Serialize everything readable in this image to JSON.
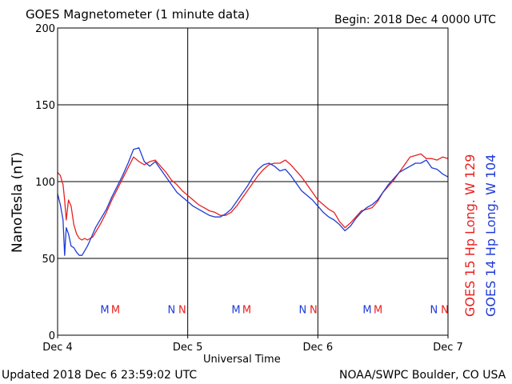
{
  "header": {
    "title": "GOES Magnetometer (1 minute data)",
    "begin": "Begin:  2018 Dec 4 0000 UTC"
  },
  "footer": {
    "updated": "Updated 2018 Dec  6 23:59:02 UTC",
    "credit": "NOAA/SWPC Boulder, CO USA"
  },
  "colors": {
    "goes15": "#e8201e",
    "goes14": "#1f3bd6",
    "grid": "#000000"
  },
  "chart_data": {
    "type": "line",
    "xlabel": "Universal Time",
    "ylabel": "NanoTesla (nT)",
    "ylim": [
      0,
      200
    ],
    "xlim": [
      0,
      72
    ],
    "yticks": [
      0,
      50,
      100,
      150,
      200
    ],
    "xticks": [
      {
        "x": 0,
        "label": "Dec 4"
      },
      {
        "x": 24,
        "label": "Dec 5"
      },
      {
        "x": 48,
        "label": "Dec 6"
      },
      {
        "x": 72,
        "label": "Dec 7"
      }
    ],
    "grid": true,
    "legend": "right-vertical",
    "series": [
      {
        "name": "GOES 15 Hp  Long. W 129",
        "color": "#e8201e",
        "x": [
          0,
          0.5,
          1,
          1.3,
          1.6,
          2,
          2.5,
          3,
          3.5,
          4,
          4.5,
          5,
          5.5,
          6,
          6.5,
          7,
          8,
          9,
          10,
          11,
          12,
          13,
          14,
          15,
          16,
          17,
          18,
          19,
          20,
          21,
          22,
          23,
          24,
          25,
          26,
          27,
          28,
          29,
          30,
          31,
          32,
          33,
          34,
          35,
          36,
          37,
          38,
          39,
          40,
          41,
          42,
          43,
          44,
          45,
          46,
          47,
          48,
          49,
          50,
          51,
          52,
          53,
          54,
          55,
          56,
          57,
          58,
          59,
          60,
          61,
          62,
          63,
          64,
          65,
          66,
          67,
          68,
          69,
          70,
          71,
          72
        ],
        "y": [
          106,
          104,
          98,
          88,
          75,
          88,
          84,
          72,
          66,
          63,
          62,
          63,
          62,
          63,
          64,
          67,
          73,
          80,
          88,
          95,
          102,
          109,
          116,
          113,
          111,
          113,
          114,
          110,
          106,
          101,
          98,
          94,
          91,
          88,
          85,
          83,
          81,
          80,
          78,
          78,
          80,
          84,
          89,
          94,
          99,
          104,
          108,
          111,
          112,
          112,
          114,
          111,
          107,
          103,
          98,
          93,
          88,
          85,
          82,
          80,
          74,
          70,
          73,
          77,
          81,
          82,
          83,
          87,
          93,
          97,
          101,
          106,
          111,
          116,
          117,
          118,
          115,
          115,
          114,
          116,
          115
        ]
      },
      {
        "name": "GOES 14 Hp  Long. W 104",
        "color": "#1f3bd6",
        "x": [
          0,
          0.5,
          1,
          1.3,
          1.6,
          2,
          2.5,
          3,
          3.5,
          4,
          4.5,
          5,
          5.5,
          6,
          6.5,
          7,
          8,
          9,
          10,
          11,
          12,
          13,
          14,
          15,
          16,
          17,
          18,
          19,
          20,
          21,
          22,
          23,
          24,
          25,
          26,
          27,
          28,
          29,
          30,
          31,
          32,
          33,
          34,
          35,
          36,
          37,
          38,
          39,
          40,
          41,
          42,
          43,
          44,
          45,
          46,
          47,
          48,
          49,
          50,
          51,
          52,
          53,
          54,
          55,
          56,
          57,
          58,
          59,
          60,
          61,
          62,
          63,
          64,
          65,
          66,
          67,
          68,
          69,
          70,
          71,
          72
        ],
        "y": [
          92,
          85,
          75,
          52,
          70,
          66,
          58,
          57,
          54,
          52,
          52,
          55,
          58,
          62,
          66,
          70,
          76,
          82,
          90,
          97,
          104,
          112,
          121,
          122,
          113,
          110,
          113,
          108,
          103,
          98,
          93,
          90,
          87,
          84,
          82,
          80,
          78,
          77,
          77,
          79,
          82,
          87,
          92,
          97,
          103,
          108,
          111,
          112,
          110,
          107,
          108,
          104,
          99,
          94,
          91,
          88,
          84,
          80,
          77,
          75,
          72,
          68,
          71,
          76,
          80,
          83,
          85,
          88,
          93,
          98,
          102,
          106,
          108,
          110,
          112,
          112,
          114,
          109,
          108,
          105,
          103
        ]
      }
    ],
    "markers": [
      {
        "x": 8.7,
        "label": "M",
        "color": "#1f3bd6"
      },
      {
        "x": 10.7,
        "label": "M",
        "color": "#e8201e"
      },
      {
        "x": 21.0,
        "label": "N",
        "color": "#1f3bd6"
      },
      {
        "x": 23.0,
        "label": "N",
        "color": "#e8201e"
      },
      {
        "x": 32.9,
        "label": "M",
        "color": "#1f3bd6"
      },
      {
        "x": 34.9,
        "label": "M",
        "color": "#e8201e"
      },
      {
        "x": 45.2,
        "label": "N",
        "color": "#1f3bd6"
      },
      {
        "x": 47.2,
        "label": "N",
        "color": "#e8201e"
      },
      {
        "x": 57.1,
        "label": "M",
        "color": "#1f3bd6"
      },
      {
        "x": 59.1,
        "label": "M",
        "color": "#e8201e"
      },
      {
        "x": 69.4,
        "label": "N",
        "color": "#1f3bd6"
      },
      {
        "x": 71.4,
        "label": "N",
        "color": "#e8201e"
      }
    ],
    "marker_y": 17
  }
}
